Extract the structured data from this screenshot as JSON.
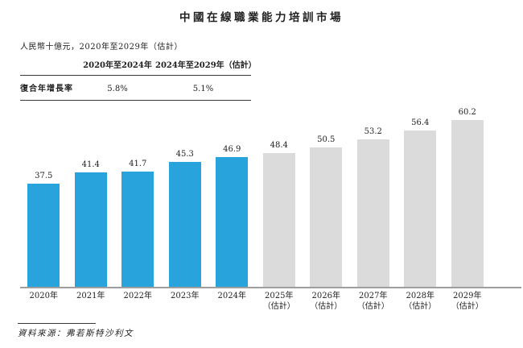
{
  "page": {
    "title": "中國在線職業能力培訓市場",
    "subtitle": "人民幣十億元，2020年至2029年（估計）",
    "source": "資料來源：弗若斯特沙利文"
  },
  "cagr_table": {
    "col_headers": [
      "2020年至2024年",
      "2024年至2029年（估計）"
    ],
    "rows": [
      {
        "label": "復合年增長率",
        "values": [
          "5.8%",
          "5.1%"
        ]
      }
    ]
  },
  "chart_data": {
    "type": "bar",
    "title": "中國在線職業能力培訓市場",
    "ylabel": "人民幣十億元",
    "categories": [
      "2020年",
      "2021年",
      "2022年",
      "2023年",
      "2024年",
      "2025年",
      "2026年",
      "2027年",
      "2028年",
      "2029年"
    ],
    "estimate_suffix": "（估計）",
    "estimate_start_index": 5,
    "values": [
      37.5,
      41.4,
      41.7,
      45.3,
      46.9,
      48.4,
      50.5,
      53.2,
      56.4,
      60.2
    ],
    "value_labels": [
      "37.5",
      "41.4",
      "41.7",
      "45.3",
      "46.9",
      "48.4",
      "50.5",
      "53.2",
      "56.4",
      "60.2"
    ],
    "colors": {
      "actual": "#29a3db",
      "estimate": "#dbdbdb"
    },
    "ylim": [
      0,
      62.8
    ],
    "grid": false,
    "legend": "none",
    "xlabel": "",
    "axis_line_color": "#9e9e9e"
  }
}
